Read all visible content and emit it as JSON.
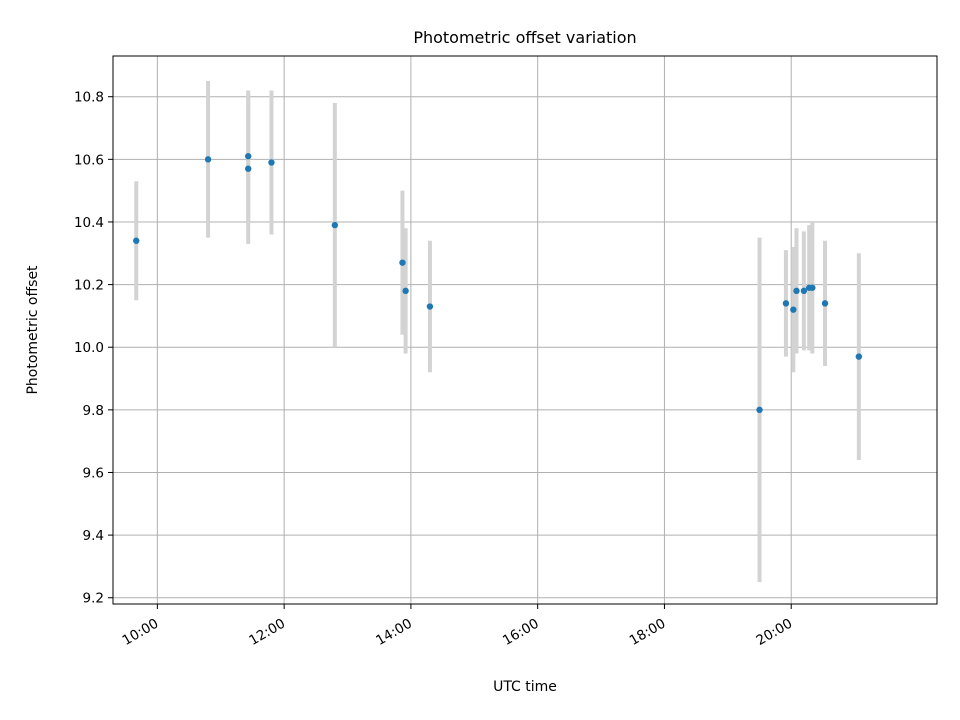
{
  "chart_data": {
    "type": "scatter",
    "title": "Photometric offset variation",
    "xlabel": "UTC time",
    "ylabel": "Photometric offset",
    "x_unit": "hours UTC",
    "xlim": [
      "09:18",
      "22:18"
    ],
    "ylim": [
      9.18,
      10.93
    ],
    "grid": true,
    "x_ticks": [
      "10:00",
      "12:00",
      "14:00",
      "16:00",
      "18:00",
      "20:00"
    ],
    "y_ticks": [
      "9.2",
      "9.4",
      "9.6",
      "9.8",
      "10.0",
      "10.2",
      "10.4",
      "10.6",
      "10.8"
    ],
    "marker_color": "#1f77b4",
    "errorbar_color": "#d3d3d3",
    "points": [
      {
        "x": "09:40",
        "y": 10.34,
        "yerr": 0.19
      },
      {
        "x": "10:48",
        "y": 10.6,
        "yerr": 0.25
      },
      {
        "x": "11:26",
        "y": 10.61,
        "yerr": 0.21
      },
      {
        "x": "11:26",
        "y": 10.57,
        "yerr": 0.24
      },
      {
        "x": "11:48",
        "y": 10.59,
        "yerr": 0.23
      },
      {
        "x": "12:48",
        "y": 10.39,
        "yerr": 0.39
      },
      {
        "x": "13:52",
        "y": 10.27,
        "yerr": 0.23
      },
      {
        "x": "13:55",
        "y": 10.18,
        "yerr": 0.2
      },
      {
        "x": "14:18",
        "y": 10.13,
        "yerr": 0.21
      },
      {
        "x": "19:30",
        "y": 9.8,
        "yerr": 0.55
      },
      {
        "x": "19:55",
        "y": 10.14,
        "yerr": 0.17
      },
      {
        "x": "20:02",
        "y": 10.12,
        "yerr": 0.2
      },
      {
        "x": "20:05",
        "y": 10.18,
        "yerr": 0.2
      },
      {
        "x": "20:12",
        "y": 10.18,
        "yerr": 0.19
      },
      {
        "x": "20:17",
        "y": 10.19,
        "yerr": 0.2
      },
      {
        "x": "20:20",
        "y": 10.19,
        "yerr": 0.21
      },
      {
        "x": "20:32",
        "y": 10.14,
        "yerr": 0.2
      },
      {
        "x": "21:04",
        "y": 9.97,
        "yerr": 0.33
      }
    ]
  }
}
